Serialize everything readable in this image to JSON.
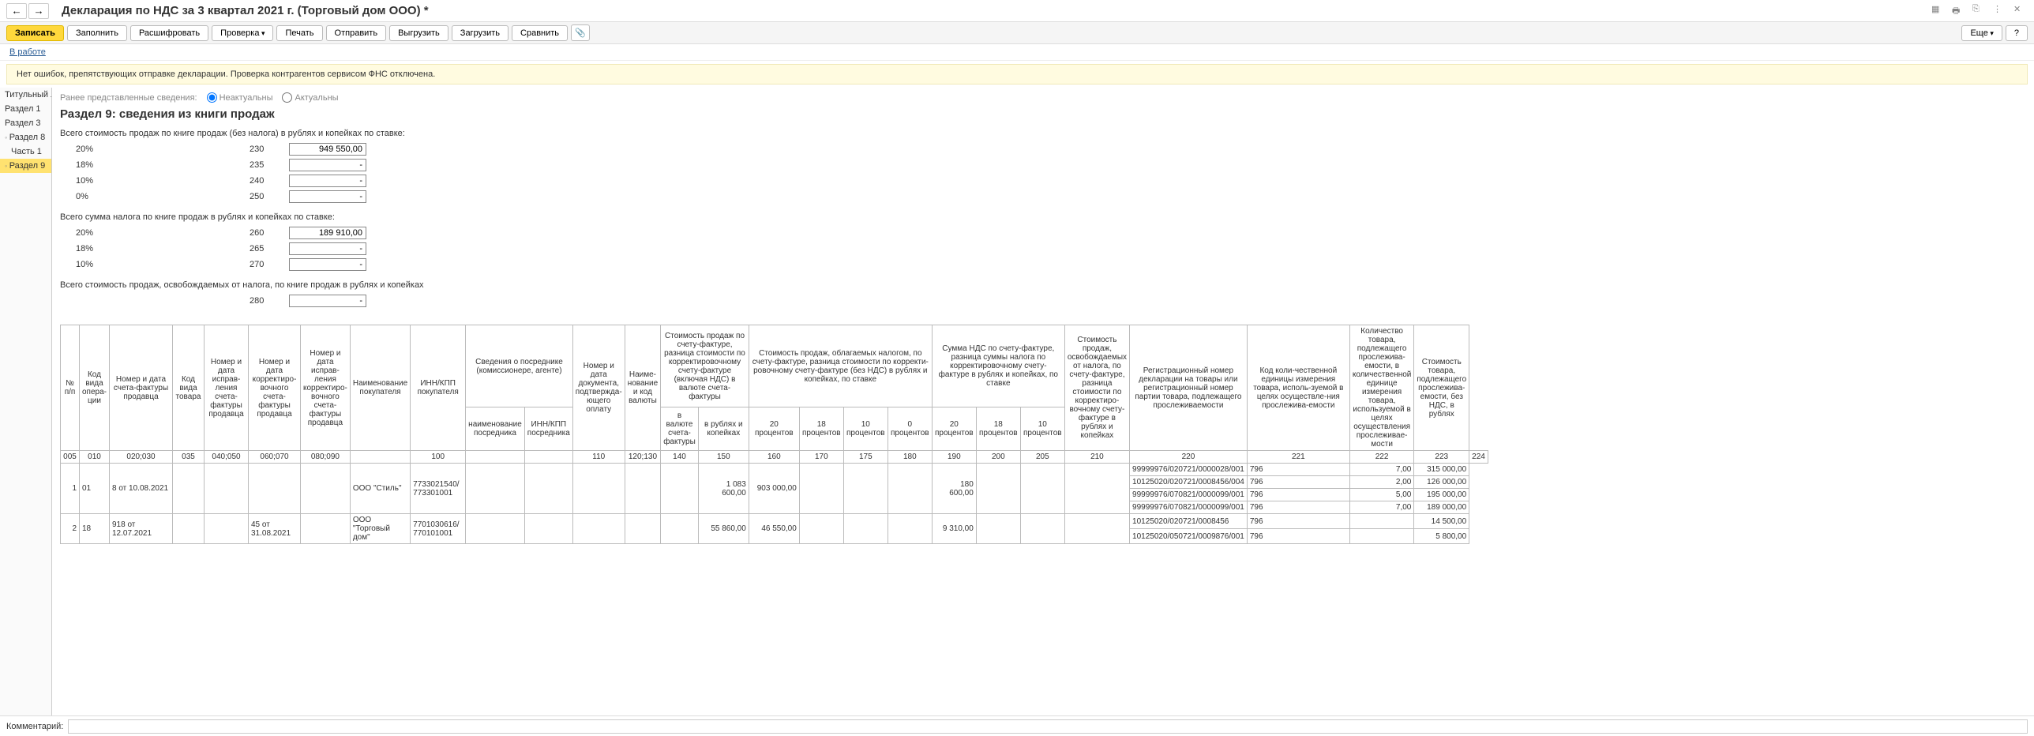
{
  "title": "Декларация по НДС за 3 квартал 2021 г. (Торговый дом ООО) *",
  "toolbar": {
    "write": "Записать",
    "fill": "Заполнить",
    "decrypt": "Расшифровать",
    "check": "Проверка",
    "print": "Печать",
    "send": "Отправить",
    "upload": "Выгрузить",
    "download": "Загрузить",
    "compare": "Сравнить",
    "more": "Еще",
    "help": "?"
  },
  "link_row": {
    "in_work": "В работе"
  },
  "notice": "Нет ошибок, препятствующих отправке декларации. Проверка контрагентов сервисом ФНС отключена.",
  "sidebar": [
    {
      "label": "Титульный л",
      "indent": false
    },
    {
      "label": "Раздел 1",
      "indent": false
    },
    {
      "label": "Раздел 3",
      "indent": false
    },
    {
      "label": "Раздел 8",
      "indent": false,
      "marker": true
    },
    {
      "label": "Часть 1",
      "indent": true
    },
    {
      "label": "Раздел 9",
      "indent": false,
      "marker": true,
      "selected": true
    }
  ],
  "content_top": {
    "prev_label": "Ранее представленные сведения:",
    "opt1": "Неактуальны",
    "opt2": "Актуальны"
  },
  "section_title": "Раздел 9: сведения из книги продаж",
  "block1": {
    "label": "Всего стоимость продаж по книге продаж (без налога) в рублях и копейках по ставке:",
    "rows": [
      {
        "rate": "20%",
        "code": "230",
        "val": "949 550,00"
      },
      {
        "rate": "18%",
        "code": "235",
        "val": "-"
      },
      {
        "rate": "10%",
        "code": "240",
        "val": "-"
      },
      {
        "rate": "0%",
        "code": "250",
        "val": "-"
      }
    ]
  },
  "block2": {
    "label": "Всего сумма налога по книге продаж в рублях и копейках по ставке:",
    "rows": [
      {
        "rate": "20%",
        "code": "260",
        "val": "189 910,00"
      },
      {
        "rate": "18%",
        "code": "265",
        "val": "-"
      },
      {
        "rate": "10%",
        "code": "270",
        "val": "-"
      }
    ]
  },
  "block3": {
    "label": "Всего стоимость продаж, освобождаемых от налога, по книге продаж в рублях и копейках",
    "rows": [
      {
        "rate": "",
        "code": "280",
        "val": "-"
      }
    ]
  },
  "table": {
    "group_headers": [
      "№ п/п",
      "Код вида опера-ции",
      "Номер и дата счета-фактуры продавца",
      "Код вида товара",
      "Номер и дата исправ-ления счета-фактуры продавца",
      "Номер и дата корректиро-вочного счета-фактуры продавца",
      "Номер и дата исправ-ления корректиро-вочного счета-фактуры продавца",
      "Наименование покупателя",
      "ИНН/КПП покупателя",
      "Сведения о посреднике (комиссионере, агенте)",
      "Номер и дата документа, подтвержда-ющего оплату",
      "Наиме-нование и код валюты",
      "Стоимость продаж по счету-фактуре, разница стоимости по корректировочному счету-фактуре (включая НДС) в валюте счета-фактуры",
      "Стоимость продаж, облагаемых налогом, по счету-фактуре, разница стоимости по корректи-ровочному счету-фактуре (без НДС) в рублях и копейках, по ставке",
      "Сумма НДС по счету-фактуре, разница суммы налога по корректировочному счету-фактуре в рублях и копейках, по ставке",
      "Стоимость продаж, освобождаемых от налога, по счету-фактуре, разница стоимости по корректиро-вочному счету-фактуре в рублях и копейках",
      "Регистрационный номер декларации на товары или регистрационный номер партии товара, подлежащего прослеживаемости",
      "Код коли-чественной единицы измерения товара, исполь-зуемой в целях осуществле-ния прослежива-емости",
      "Количество товара, подлежащего прослежива-емости, в количественной единице измерения товара, используемой в целях осуществления прослеживае-мости",
      "Стоимость товара, подлежащего прослежива-емости, без НДС, в рублях"
    ],
    "sub_headers_mediator": [
      "наименование посредника",
      "ИНН/КПП посредника"
    ],
    "sub_headers_cost": [
      "в валюте счета-фактуры",
      "в рублях и копейках"
    ],
    "sub_headers_tax20": [
      "20 процентов",
      "18 процентов",
      "10 процентов",
      "0 процентов"
    ],
    "sub_headers_nds": [
      "20 процентов",
      "18 процентов",
      "10 процентов"
    ],
    "code_row": [
      "005",
      "010",
      "020;030",
      "035",
      "040;050",
      "060;070",
      "080;090",
      "",
      "100",
      "",
      "",
      "110",
      "120;130",
      "140",
      "150",
      "160",
      "170",
      "175",
      "180",
      "190",
      "200",
      "205",
      "210",
      "220",
      "221",
      "222",
      "223",
      "224"
    ],
    "rows": [
      {
        "n": "1",
        "op": "01",
        "sf": "8 от 10.08.2021",
        "buyer": "ООО \"Стиль\"",
        "inn": "7733021540/ 773301001",
        "rub": "1 083 600,00",
        "tax20": "903 000,00",
        "nds20": "180 600,00",
        "sub": [
          {
            "reg": "99999976/020721/0000028/001",
            "unit": "796",
            "qty": "7,00",
            "cost": "315 000,00"
          },
          {
            "reg": "10125020/020721/0008456/004",
            "unit": "796",
            "qty": "2,00",
            "cost": "126 000,00"
          },
          {
            "reg": "99999976/070821/0000099/001",
            "unit": "796",
            "qty": "5,00",
            "cost": "195 000,00"
          },
          {
            "reg": "99999976/070821/0000099/001",
            "unit": "796",
            "qty": "7,00",
            "cost": "189 000,00"
          }
        ]
      },
      {
        "n": "2",
        "op": "18",
        "sf": "918 от 12.07.2021",
        "corr": "45 от 31.08.2021",
        "buyer": "ООО \"Торговый дом\"",
        "inn": "7701030616/ 770101001",
        "rub": "55 860,00",
        "tax20": "46 550,00",
        "nds20": "9 310,00",
        "sub": [
          {
            "reg": "10125020/020721/0008456",
            "unit": "796",
            "qty": "",
            "cost": "14 500,00"
          },
          {
            "reg": "10125020/050721/0009876/001",
            "unit": "796",
            "qty": "",
            "cost": "5 800,00"
          }
        ]
      }
    ]
  },
  "footer": {
    "comment_label": "Комментарий:"
  },
  "colors": {
    "primary_btn": "#ffd83c",
    "notice_bg": "#fffbe0",
    "selected_bg": "#ffe270"
  }
}
